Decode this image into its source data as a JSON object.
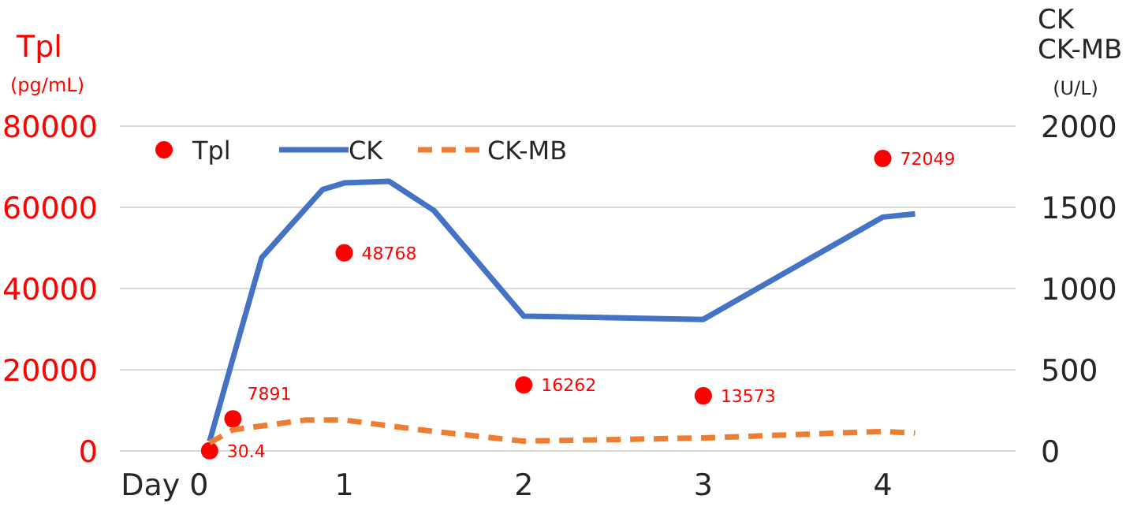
{
  "chart_data": {
    "type": "line",
    "ylabel": "Tpl\n(pg/mL)",
    "y2label": "CK\nCK-MB\n(U/L)",
    "xlim": [
      -0.25,
      4.74
    ],
    "xticks": [
      {
        "value": 0,
        "label": "Day 0"
      },
      1,
      2,
      3,
      4
    ],
    "ylim": [
      0,
      80000
    ],
    "yticks": [
      0,
      20000,
      40000,
      60000,
      80000
    ],
    "y2lim": [
      0,
      2000
    ],
    "y2ticks": [
      0,
      500,
      1000,
      1500,
      2000
    ],
    "grid": "y",
    "legend": "top left",
    "series": [
      {
        "name": "Tpl",
        "type": "scatter",
        "marker": "circle",
        "color": "#ff0000",
        "x": [
          0.25,
          0.38,
          1,
          2,
          3,
          4
        ],
        "values": [
          30.4,
          7891,
          48768,
          16262,
          13573,
          72049
        ],
        "value_labels": [
          "30.4",
          "7891",
          "48768",
          "16262",
          "13573",
          "72049"
        ]
      },
      {
        "name": "CK",
        "axis": "y2",
        "color": "#4472c4",
        "line_style": "solid",
        "x": [
          0.25,
          0.38,
          0.54,
          0.75,
          0.88,
          1,
          1.25,
          1.5,
          2,
          3,
          4,
          4.18
        ],
        "values": [
          60,
          570,
          1190,
          1450,
          1610,
          1650,
          1660,
          1480,
          830,
          810,
          1440,
          1460
        ]
      },
      {
        "name": "CK-MB",
        "axis": "y2",
        "color": "#ed7d31",
        "line_style": "dashed",
        "x": [
          0.25,
          0.38,
          0.78,
          1,
          1.5,
          2,
          3,
          4,
          4.18
        ],
        "values": [
          50,
          130,
          190,
          190,
          120,
          60,
          80,
          120,
          110
        ]
      }
    ]
  }
}
